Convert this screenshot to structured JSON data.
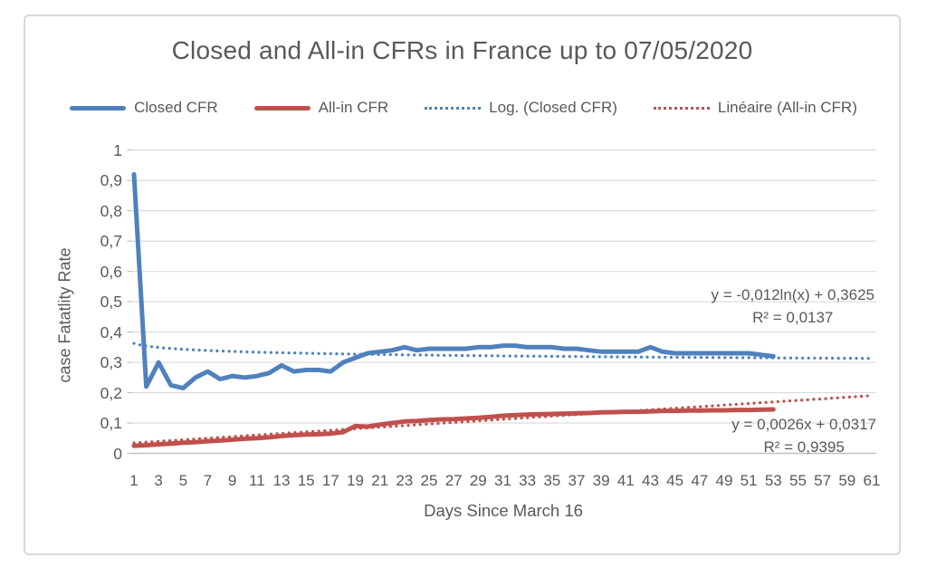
{
  "chart_data": {
    "type": "line",
    "title": "Closed and All-in CFRs in France up to 07/05/2020",
    "xlabel": "Days Since March 16",
    "ylabel": "case Fatatlity Rate",
    "xlim": [
      1,
      61
    ],
    "ylim": [
      0,
      1
    ],
    "grid": "horizontal",
    "legend_position": "top",
    "colors": {
      "closed_blue": "#4F81BD",
      "allin_red": "#C0504D",
      "text": "#595959",
      "gridline": "#D9D9D9",
      "axis_line": "#BFBFBF",
      "frame_border": "#D9D9D9"
    },
    "x_axis": {
      "tick_values": [
        1,
        3,
        5,
        7,
        9,
        11,
        13,
        15,
        17,
        19,
        21,
        23,
        25,
        27,
        29,
        31,
        33,
        35,
        37,
        39,
        41,
        43,
        45,
        47,
        49,
        51,
        53,
        55,
        57,
        59,
        61
      ]
    },
    "y_axis": {
      "tick_values": [
        0,
        0.1,
        0.2,
        0.3,
        0.4,
        0.5,
        0.6,
        0.7,
        0.8,
        0.9,
        1
      ],
      "tick_labels": [
        "0",
        "0,1",
        "0,2",
        "0,3",
        "0,4",
        "0,5",
        "0,6",
        "0,7",
        "0,8",
        "0,9",
        "1"
      ]
    },
    "series": [
      {
        "name": "Closed CFR",
        "style": "solid",
        "color": "#4F81BD",
        "x_start": 1,
        "values": [
          0.92,
          0.22,
          0.3,
          0.225,
          0.215,
          0.25,
          0.27,
          0.245,
          0.255,
          0.25,
          0.255,
          0.265,
          0.29,
          0.27,
          0.275,
          0.275,
          0.27,
          0.3,
          0.315,
          0.33,
          0.335,
          0.34,
          0.35,
          0.34,
          0.345,
          0.345,
          0.345,
          0.345,
          0.35,
          0.35,
          0.355,
          0.355,
          0.35,
          0.35,
          0.35,
          0.345,
          0.345,
          0.34,
          0.335,
          0.335,
          0.335,
          0.335,
          0.35,
          0.335,
          0.33,
          0.33,
          0.33,
          0.33,
          0.33,
          0.33,
          0.33,
          0.325,
          0.32
        ]
      },
      {
        "name": "All-in CFR",
        "style": "solid",
        "color": "#C0504D",
        "x_start": 1,
        "values": [
          0.025,
          0.027,
          0.03,
          0.032,
          0.035,
          0.037,
          0.04,
          0.042,
          0.045,
          0.048,
          0.05,
          0.053,
          0.057,
          0.06,
          0.062,
          0.063,
          0.065,
          0.07,
          0.09,
          0.088,
          0.095,
          0.1,
          0.105,
          0.107,
          0.11,
          0.112,
          0.113,
          0.115,
          0.117,
          0.12,
          0.124,
          0.126,
          0.128,
          0.129,
          0.13,
          0.131,
          0.132,
          0.133,
          0.135,
          0.136,
          0.137,
          0.137,
          0.138,
          0.14,
          0.14,
          0.141,
          0.141,
          0.142,
          0.142,
          0.143,
          0.143,
          0.144,
          0.145
        ]
      },
      {
        "name": "Log. (Closed CFR)",
        "style": "dotted",
        "color": "#4F81BD",
        "trend": {
          "kind": "log",
          "a": -0.012,
          "b": 0.3625
        },
        "x_range": [
          1,
          61
        ]
      },
      {
        "name": "Linéaire (All-in CFR)",
        "style": "dotted",
        "color": "#C0504D",
        "trend": {
          "kind": "linear",
          "a": 0.0026,
          "b": 0.0317
        },
        "x_range": [
          1,
          61
        ]
      }
    ],
    "annotations": [
      {
        "lines": [
          "y = -0,012ln(x) + 0,3625",
          "R² = 0,0137"
        ]
      },
      {
        "lines": [
          "y = 0,0026x + 0,0317",
          "R² = 0,9395"
        ]
      }
    ]
  }
}
